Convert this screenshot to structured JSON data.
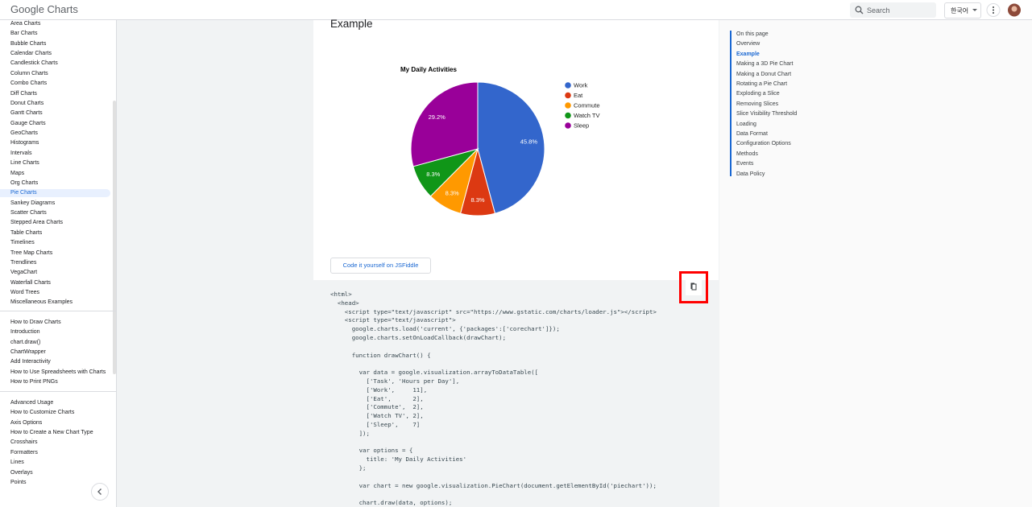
{
  "header": {
    "logo": "Google Charts",
    "search": "Search",
    "language": "한국어"
  },
  "nav": {
    "groups": [
      [
        "Area Charts",
        "Bar Charts",
        "Bubble Charts",
        "Calendar Charts",
        "Candlestick Charts",
        "Column Charts",
        "Combo Charts",
        "Diff Charts",
        "Donut Charts",
        "Gantt Charts",
        "Gauge Charts",
        "GeoCharts",
        "Histograms",
        "Intervals",
        "Line Charts",
        "Maps",
        "Org Charts",
        "Pie Charts",
        "Sankey Diagrams",
        "Scatter Charts",
        "Stepped Area Charts",
        "Table Charts",
        "Timelines",
        "Tree Map Charts",
        "Trendlines",
        "VegaChart",
        "Waterfall Charts",
        "Word Trees",
        "Miscellaneous Examples"
      ],
      [
        "How to Draw Charts",
        "Introduction",
        "chart.draw()",
        "ChartWrapper",
        "Add Interactivity",
        "How to Use Spreadsheets with Charts",
        "How to Print PNGs"
      ],
      [
        "Advanced Usage",
        "How to Customize Charts",
        "Axis Options",
        "How to Create a New Chart Type",
        "Crosshairs",
        "Formatters",
        "Lines",
        "Overlays",
        "Points"
      ]
    ]
  },
  "main": {
    "heading": "Example",
    "button": "Code it yourself on JSFiddle",
    "code": "<html>\n  <head>\n    <script type=\"text/javascript\" src=\"https://www.gstatic.com/charts/loader.js\"></script>\n    <script type=\"text/javascript\">\n      google.charts.load('current', {'packages':['corechart']});\n      google.charts.setOnLoadCallback(drawChart);\n\n      function drawChart() {\n\n        var data = google.visualization.arrayToDataTable([\n          ['Task', 'Hours per Day'],\n          ['Work',     11],\n          ['Eat',      2],\n          ['Commute',  2],\n          ['Watch TV', 2],\n          ['Sleep',    7]\n        ]);\n\n        var options = {\n          title: 'My Daily Activities'\n        };\n\n        var chart = new google.visualization.PieChart(document.getElementById('piechart'));\n\n        chart.draw(data, options);"
  },
  "chart_data": {
    "type": "pie",
    "title": "My Daily Activities",
    "categories": [
      "Work",
      "Eat",
      "Commute",
      "Watch TV",
      "Sleep"
    ],
    "values": [
      45.8,
      8.3,
      8.3,
      8.3,
      29.2
    ],
    "value_labels": [
      "45.8%",
      "8.3%",
      "8.3%",
      "8.3%",
      "29.2%"
    ],
    "colors": [
      "#3366cc",
      "#dc3912",
      "#ff9900",
      "#109618",
      "#990099"
    ],
    "legend": "right"
  },
  "toc": {
    "title": "On this page",
    "items": [
      "Overview",
      "Example",
      "Making a 3D Pie Chart",
      "Making a Donut Chart",
      "Rotating a Pie Chart",
      "Exploding a Slice",
      "Removing Slices",
      "Slice Visibility Threshold",
      "Loading",
      "Data Format",
      "Configuration Options",
      "Methods",
      "Events",
      "Data Policy"
    ]
  }
}
